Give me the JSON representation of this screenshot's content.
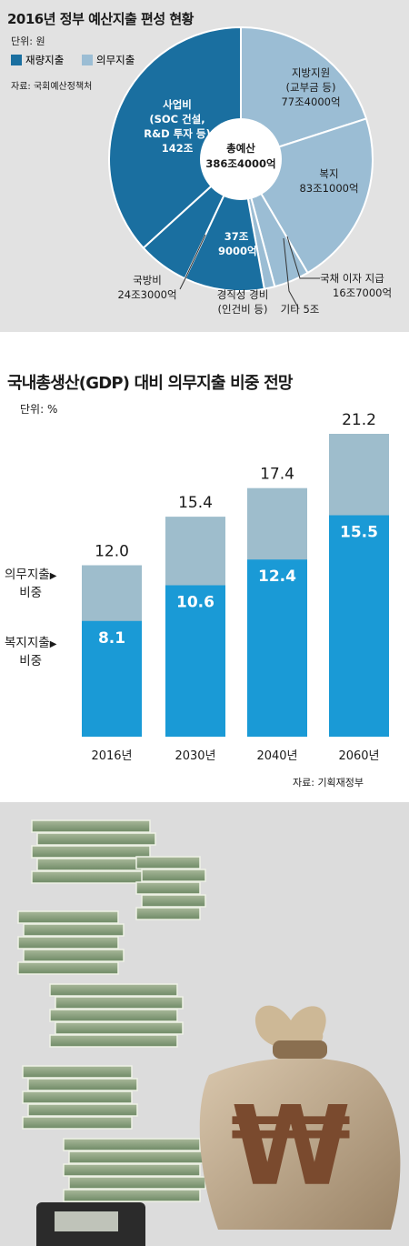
{
  "pie": {
    "title": "2016년 정부 예산지출 편성 현황",
    "unit": "단위: 원",
    "legend": [
      {
        "label": "재량지출",
        "color": "#1a6fa0"
      },
      {
        "label": "의무지출",
        "color": "#9bbdd4"
      }
    ],
    "source": "자료: 국회예산정책처",
    "center_label_1": "총예산",
    "center_label_2": "386조4000억"
  },
  "bar": {
    "title": "국내총생산(GDP) 대비 의무지출 비중 전망",
    "unit": "단위: %",
    "legend_mandatory_1": "의무지출",
    "legend_mandatory_2": "비중",
    "legend_welfare_1": "복지지출",
    "legend_welfare_2": "비중",
    "arrow": "▶",
    "source": "자료: 기획재정부"
  },
  "chart_data": [
    {
      "type": "pie",
      "title": "2016년 정부 예산지출 편성 현황",
      "unit": "원",
      "total": "386조4000억",
      "slices": [
        {
          "name": "지방지원 (교부금 등)",
          "value_label": "77조4000억",
          "value": 77.4,
          "group": "의무지출",
          "color": "#9bbdd4"
        },
        {
          "name": "복지",
          "value_label": "83조1000억",
          "value": 83.1,
          "group": "의무지출",
          "color": "#9bbdd4"
        },
        {
          "name": "국채 이자 지급",
          "value_label": "16조7000억",
          "value": 16.7,
          "group": "의무지출",
          "color": "#9bbdd4"
        },
        {
          "name": "기타",
          "value_label": "5조",
          "value": 5.0,
          "group": "의무지출",
          "color": "#9bbdd4"
        },
        {
          "name": "경직성 경비 (인건비 등)",
          "value_label": "37조 9000억",
          "value": 37.9,
          "group": "재량지출",
          "color": "#1a6fa0"
        },
        {
          "name": "국방비",
          "value_label": "24조3000억",
          "value": 24.3,
          "group": "재량지출",
          "color": "#1a6fa0"
        },
        {
          "name": "사업비 (SOC 건설, R&D 투자 등)",
          "value_label": "142조",
          "value": 142.0,
          "group": "재량지출",
          "color": "#1a6fa0"
        }
      ]
    },
    {
      "type": "bar",
      "title": "국내총생산(GDP) 대비 의무지출 비중 전망",
      "ylabel": "%",
      "categories": [
        "2016년",
        "2030년",
        "2040년",
        "2060년"
      ],
      "series": [
        {
          "name": "복지지출 비중",
          "values": [
            8.1,
            10.6,
            12.4,
            15.5
          ],
          "color": "#1a9ad6"
        },
        {
          "name": "의무지출 비중",
          "values": [
            12.0,
            15.4,
            17.4,
            21.2
          ],
          "color": "#9ebdcc"
        }
      ],
      "ylim": [
        0,
        21.2
      ]
    }
  ]
}
